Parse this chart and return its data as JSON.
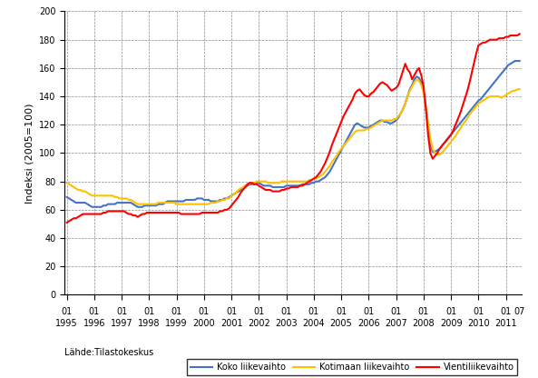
{
  "title": "",
  "ylabel": "Indeksi (2005=100)",
  "source_label": "Lähde:Tilastokeskus",
  "ylim": [
    0,
    200
  ],
  "yticks": [
    0,
    20,
    40,
    60,
    80,
    100,
    120,
    140,
    160,
    180,
    200
  ],
  "year_labels": [
    "1995",
    "1996",
    "1997",
    "1998",
    "1999",
    "2000",
    "2001",
    "2002",
    "2003",
    "2004",
    "2005",
    "2006",
    "2007",
    "2008",
    "2009",
    "2010",
    "2011"
  ],
  "last_label": "07",
  "legend_entries": [
    "Koko liikevaihto",
    "Kotimaan liikevaihto",
    "Vientiliikevaihto"
  ],
  "line_colors": [
    "#4472C4",
    "#FFC000",
    "#FF0000"
  ],
  "line_width": 1.5,
  "koko": [
    69,
    68,
    67,
    66,
    65,
    65,
    65,
    65,
    65,
    64,
    63,
    62,
    62,
    62,
    62,
    62,
    63,
    63,
    64,
    64,
    64,
    64,
    65,
    65,
    65,
    65,
    65,
    65,
    65,
    64,
    63,
    62,
    62,
    62,
    63,
    63,
    63,
    63,
    63,
    63,
    64,
    64,
    64,
    65,
    66,
    66,
    66,
    66,
    66,
    66,
    66,
    66,
    67,
    67,
    67,
    67,
    67,
    68,
    68,
    68,
    67,
    67,
    67,
    66,
    66,
    66,
    66,
    67,
    67,
    68,
    68,
    69,
    70,
    71,
    72,
    73,
    74,
    75,
    76,
    77,
    78,
    78,
    78,
    79,
    79,
    78,
    77,
    77,
    77,
    77,
    76,
    76,
    76,
    76,
    76,
    76,
    77,
    77,
    77,
    77,
    77,
    77,
    77,
    78,
    78,
    78,
    78,
    79,
    79,
    80,
    80,
    81,
    82,
    83,
    85,
    87,
    90,
    93,
    96,
    99,
    102,
    105,
    108,
    111,
    114,
    117,
    120,
    121,
    120,
    119,
    118,
    118,
    118,
    119,
    120,
    121,
    122,
    123,
    123,
    122,
    122,
    121,
    121,
    122,
    123,
    125,
    128,
    131,
    135,
    140,
    145,
    148,
    152,
    154,
    153,
    150,
    144,
    132,
    118,
    106,
    101,
    101,
    102,
    103,
    105,
    107,
    109,
    111,
    113,
    115,
    117,
    119,
    121,
    123,
    125,
    127,
    129,
    131,
    133,
    135,
    137,
    138,
    140,
    142,
    144,
    146,
    148,
    150,
    152,
    154,
    156,
    158,
    160,
    162,
    163,
    164,
    165,
    165,
    165
  ],
  "kotimaan": [
    79,
    78,
    77,
    76,
    75,
    74,
    74,
    73,
    73,
    72,
    71,
    70,
    70,
    70,
    70,
    70,
    70,
    70,
    70,
    70,
    70,
    69,
    69,
    68,
    68,
    68,
    68,
    67,
    67,
    66,
    65,
    64,
    64,
    64,
    64,
    64,
    64,
    64,
    64,
    64,
    65,
    65,
    65,
    65,
    65,
    65,
    65,
    65,
    64,
    64,
    64,
    64,
    64,
    64,
    64,
    64,
    64,
    64,
    64,
    64,
    64,
    64,
    64,
    65,
    65,
    65,
    66,
    66,
    67,
    67,
    68,
    68,
    70,
    71,
    72,
    74,
    75,
    76,
    77,
    78,
    79,
    79,
    79,
    80,
    80,
    80,
    80,
    80,
    79,
    79,
    79,
    79,
    79,
    79,
    80,
    80,
    80,
    80,
    80,
    80,
    80,
    80,
    80,
    80,
    80,
    80,
    81,
    81,
    82,
    82,
    83,
    84,
    85,
    87,
    89,
    91,
    94,
    96,
    98,
    101,
    103,
    105,
    107,
    109,
    111,
    113,
    115,
    116,
    116,
    116,
    116,
    117,
    117,
    118,
    119,
    120,
    121,
    122,
    123,
    123,
    123,
    123,
    123,
    124,
    124,
    126,
    128,
    131,
    135,
    140,
    144,
    147,
    150,
    152,
    151,
    148,
    143,
    133,
    121,
    110,
    103,
    100,
    99,
    99,
    100,
    102,
    104,
    106,
    108,
    110,
    112,
    115,
    117,
    120,
    122,
    124,
    127,
    129,
    131,
    133,
    135,
    136,
    137,
    138,
    139,
    140,
    140,
    140,
    140,
    140,
    139,
    140,
    141,
    142,
    143,
    144,
    144,
    145,
    145
  ],
  "vienti": [
    51,
    52,
    53,
    54,
    54,
    55,
    56,
    57,
    57,
    57,
    57,
    57,
    57,
    57,
    57,
    57,
    58,
    58,
    59,
    59,
    59,
    59,
    59,
    59,
    59,
    59,
    58,
    57,
    57,
    56,
    56,
    55,
    56,
    57,
    57,
    58,
    58,
    58,
    58,
    58,
    58,
    58,
    58,
    58,
    58,
    58,
    58,
    58,
    58,
    58,
    57,
    57,
    57,
    57,
    57,
    57,
    57,
    57,
    57,
    58,
    58,
    58,
    58,
    58,
    58,
    58,
    58,
    59,
    59,
    60,
    60,
    61,
    63,
    65,
    67,
    69,
    72,
    74,
    76,
    78,
    79,
    79,
    78,
    78,
    77,
    76,
    75,
    74,
    74,
    74,
    73,
    73,
    73,
    73,
    74,
    74,
    75,
    75,
    76,
    76,
    76,
    76,
    77,
    77,
    78,
    79,
    80,
    81,
    82,
    83,
    85,
    87,
    90,
    93,
    97,
    101,
    106,
    110,
    114,
    118,
    122,
    126,
    129,
    132,
    135,
    138,
    142,
    144,
    145,
    143,
    141,
    140,
    140,
    142,
    143,
    145,
    147,
    149,
    150,
    149,
    148,
    146,
    144,
    145,
    146,
    148,
    153,
    158,
    163,
    159,
    157,
    152,
    155,
    158,
    160,
    155,
    147,
    132,
    113,
    100,
    96,
    98,
    100,
    103,
    105,
    107,
    109,
    111,
    113,
    116,
    120,
    124,
    128,
    133,
    138,
    143,
    149,
    156,
    163,
    170,
    176,
    177,
    178,
    178,
    179,
    180,
    180,
    180,
    180,
    181,
    181,
    181,
    182,
    182,
    183,
    183,
    183,
    183,
    184
  ]
}
